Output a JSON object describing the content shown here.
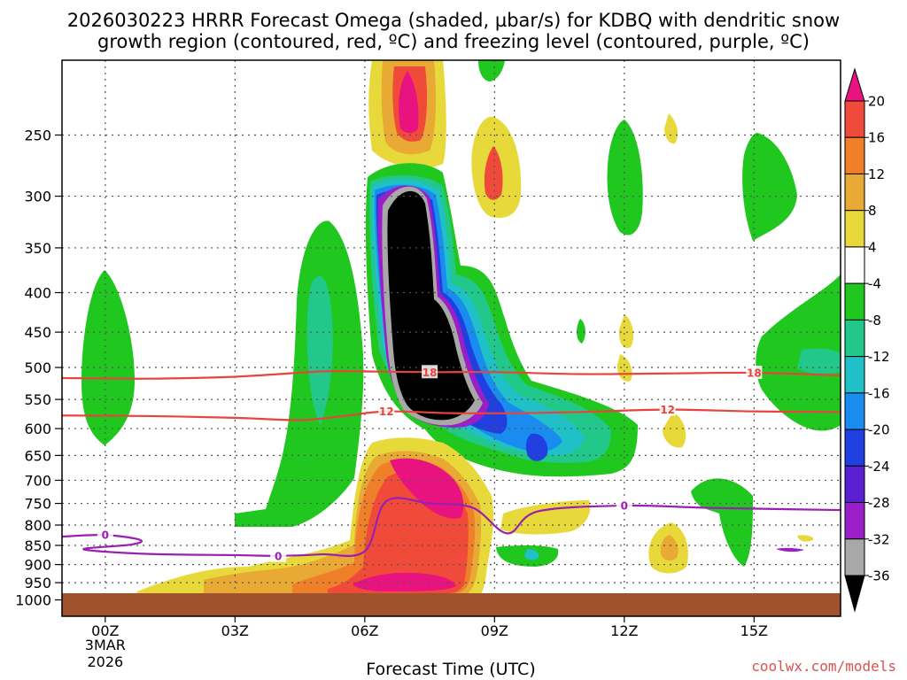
{
  "chart_data": {
    "type": "contour",
    "title_lines": [
      "2026030223 HRRR Forecast Omega (shaded, µbar/s) for KDBQ with dendritic snow",
      "growth region (contoured, red, ºC) and freezing level (contoured, purple, ºC)"
    ],
    "xlabel": "Forecast Time (UTC)",
    "x_ticks": [
      "00Z",
      "03Z",
      "06Z",
      "09Z",
      "12Z",
      "15Z"
    ],
    "x_tick_hours": [
      0,
      3,
      6,
      9,
      12,
      15
    ],
    "x_date_lines": [
      "3MAR",
      "2026"
    ],
    "xlim_hours": [
      -1,
      17
    ],
    "y_ticks": [
      250,
      300,
      350,
      400,
      450,
      500,
      550,
      600,
      650,
      700,
      750,
      800,
      850,
      900,
      950,
      1000
    ],
    "ylabel": "",
    "ylim_hpa": [
      200,
      1050
    ],
    "colorbar_ticks": [
      20,
      16,
      12,
      8,
      4,
      -4,
      -8,
      -12,
      -16,
      -20,
      -24,
      -28,
      -32,
      -36
    ],
    "colorbar_colors": [
      "#e8137f",
      "#f04a3a",
      "#f07f2a",
      "#e9a935",
      "#e8d93a",
      "#ffffff",
      "#1fc71f",
      "#22c88a",
      "#1fc0c8",
      "#1a8cf0",
      "#1f3fe0",
      "#5a1fd0",
      "#9a1fc8",
      "#a8a8a8",
      "#000000"
    ],
    "series": [
      {
        "name": "-18",
        "color": "#e8443c",
        "label": "18",
        "x": [
          -1,
          1,
          3,
          5,
          6,
          7.5,
          9,
          11,
          13,
          15,
          17
        ],
        "y": [
          516,
          517,
          514,
          506,
          506,
          507,
          507,
          510,
          509,
          508,
          512
        ]
      },
      {
        "name": "-12",
        "color": "#e8443c",
        "label": "12",
        "x": [
          -1,
          1,
          3,
          4.5,
          5.5,
          6.5,
          8,
          9.5,
          11,
          13,
          15,
          17
        ],
        "y": [
          577,
          578,
          581,
          585,
          578,
          570,
          573,
          573,
          571,
          567,
          570,
          571
        ]
      },
      {
        "name": "0",
        "color": "#9a1fb0",
        "label": "0",
        "x": [
          -1,
          0,
          0.8,
          0.6,
          -0.5,
          1,
          3,
          4,
          5,
          6,
          6.5,
          7.5,
          8.5,
          9.3,
          10,
          12,
          14,
          17
        ],
        "y": [
          828,
          824,
          836,
          848,
          860,
          872,
          875,
          877,
          873,
          865,
          745,
          750,
          760,
          820,
          768,
          755,
          760,
          765
        ]
      }
    ],
    "omega_regions": [
      {
        "level": "-36",
        "desc": "strongest ascent core",
        "x_range": [
          6.2,
          8.7
        ],
        "p_range": [
          300,
          590
        ]
      },
      {
        "level": "20",
        "desc": "descent max upper",
        "x_range": [
          6.7,
          7.3
        ],
        "p_range": [
          200,
          270
        ]
      },
      {
        "level": "20",
        "desc": "descent max lower",
        "x_range": [
          6.5,
          8
        ],
        "p_range": [
          700,
          960
        ]
      }
    ],
    "credit": "coolwx.com/models",
    "legend": "right"
  }
}
